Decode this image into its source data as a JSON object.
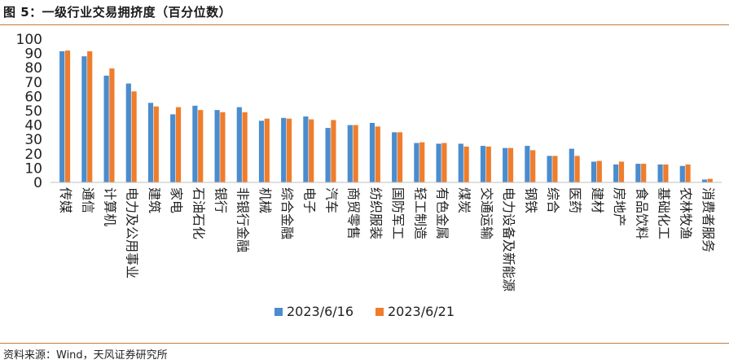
{
  "header": {
    "title": "图 5：一级行业交易拥挤度（百分位数）"
  },
  "footer": {
    "source": "资料来源：Wind，天风证券研究所"
  },
  "chart_data": {
    "type": "bar",
    "ylim": [
      0,
      100
    ],
    "yticks": [
      "0",
      "10",
      "20",
      "30",
      "40",
      "50",
      "60",
      "70",
      "80",
      "90",
      "100"
    ],
    "legend_position": "bottom",
    "categories": [
      "传媒",
      "通信",
      "计算机",
      "电力及公用事业",
      "建筑",
      "家电",
      "石油石化",
      "银行",
      "非银行金融",
      "机械",
      "综合金融",
      "电子",
      "汽车",
      "商贸零售",
      "纺织服装",
      "国防军工",
      "轻工制造",
      "有色金属",
      "煤炭",
      "交通运输",
      "电力设备及新能源",
      "钢铁",
      "综合",
      "医药",
      "建材",
      "房地产",
      "食品饮料",
      "基础化工",
      "农林牧渔",
      "消费者服务"
    ],
    "series": [
      {
        "name": "2023/6/16",
        "color": "#4b8ccd",
        "values": [
          91.5,
          88,
          74.5,
          69,
          55.5,
          47.5,
          53.5,
          50.5,
          52.5,
          43,
          45,
          46,
          38,
          40,
          41.5,
          35,
          27.5,
          27,
          27,
          25.5,
          24,
          25.5,
          18.5,
          23.5,
          14.5,
          12.5,
          13,
          12.5,
          11.5,
          2
        ]
      },
      {
        "name": "2023/6/21",
        "color": "#ef7d2c",
        "values": [
          92,
          91.5,
          79.5,
          63.5,
          53,
          52.5,
          50.5,
          49,
          49,
          44.5,
          44.5,
          44,
          43.5,
          40,
          39,
          35,
          28,
          27.5,
          25,
          25,
          24,
          22.5,
          18.5,
          18.5,
          15,
          14.5,
          13,
          12.5,
          12.5,
          2.5
        ]
      }
    ]
  }
}
